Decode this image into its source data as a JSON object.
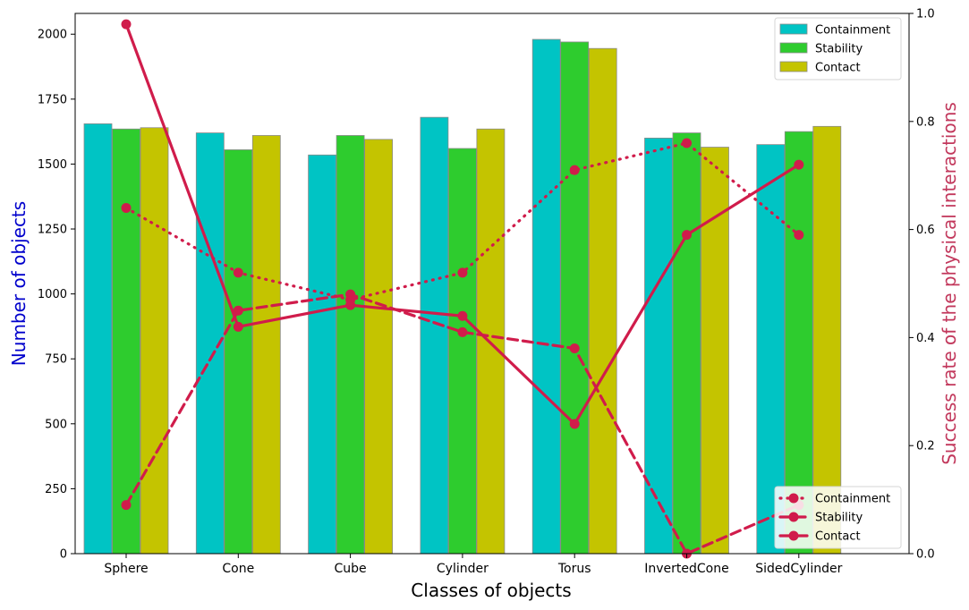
{
  "chart_data": {
    "type": "bar",
    "title": "",
    "xlabel": "Classes of objects",
    "ylabel": "Number of objects",
    "y2label": "Success rate of the physical interactions",
    "ylim": [
      0,
      2080
    ],
    "y2lim": [
      0,
      1.0
    ],
    "yticks": [
      0,
      250,
      500,
      750,
      1000,
      1250,
      1500,
      1750,
      2000
    ],
    "y2ticks": [
      0.0,
      0.2,
      0.4,
      0.6,
      0.8,
      1.0
    ],
    "categories": [
      "Sphere",
      "Cone",
      "Cube",
      "Cylinder",
      "Torus",
      "InvertedCone",
      "SidedCylinder"
    ],
    "bar_series": [
      {
        "name": "Containment",
        "color": "#00c4c4",
        "values": [
          1655,
          1620,
          1535,
          1680,
          1980,
          1600,
          1575
        ]
      },
      {
        "name": "Stability",
        "color": "#2ecc2e",
        "values": [
          1635,
          1555,
          1610,
          1560,
          1970,
          1620,
          1625
        ]
      },
      {
        "name": "Contact",
        "color": "#c4c400",
        "values": [
          1640,
          1610,
          1595,
          1635,
          1945,
          1565,
          1645
        ]
      }
    ],
    "line_series": [
      {
        "name": "Containment",
        "style": "dotted",
        "color": "#d01c4b",
        "values": [
          0.64,
          0.52,
          0.47,
          0.52,
          0.71,
          0.76,
          0.59
        ]
      },
      {
        "name": "Stability",
        "style": "dashed",
        "color": "#d01c4b",
        "values": [
          0.09,
          0.45,
          0.48,
          0.41,
          0.38,
          0.0,
          0.09
        ]
      },
      {
        "name": "Contact",
        "style": "solid",
        "color": "#d01c4b",
        "values": [
          0.98,
          0.42,
          0.46,
          0.44,
          0.24,
          0.59,
          0.72
        ]
      }
    ],
    "legend_bars_position": "top-right",
    "legend_lines_position": "bottom-right",
    "grid": false
  }
}
